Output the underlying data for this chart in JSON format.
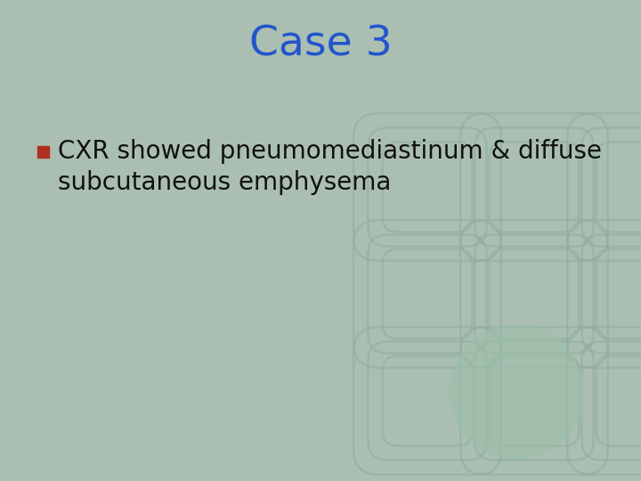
{
  "title": "Case 3",
  "title_color": "#2255CC",
  "title_fontsize": 34,
  "background_color": "#AABFB2",
  "bullet_text_line1": "CXR showed pneumomediastinum & diffuse",
  "bullet_text_line2": "subcutaneous emphysema",
  "bullet_color": "#B03020",
  "text_color": "#111111",
  "text_fontsize": 20,
  "pattern_color": "#8EAD9A",
  "pattern_alpha": 0.55,
  "circle_color": "#9DBFAC",
  "circle_alpha": 0.6
}
